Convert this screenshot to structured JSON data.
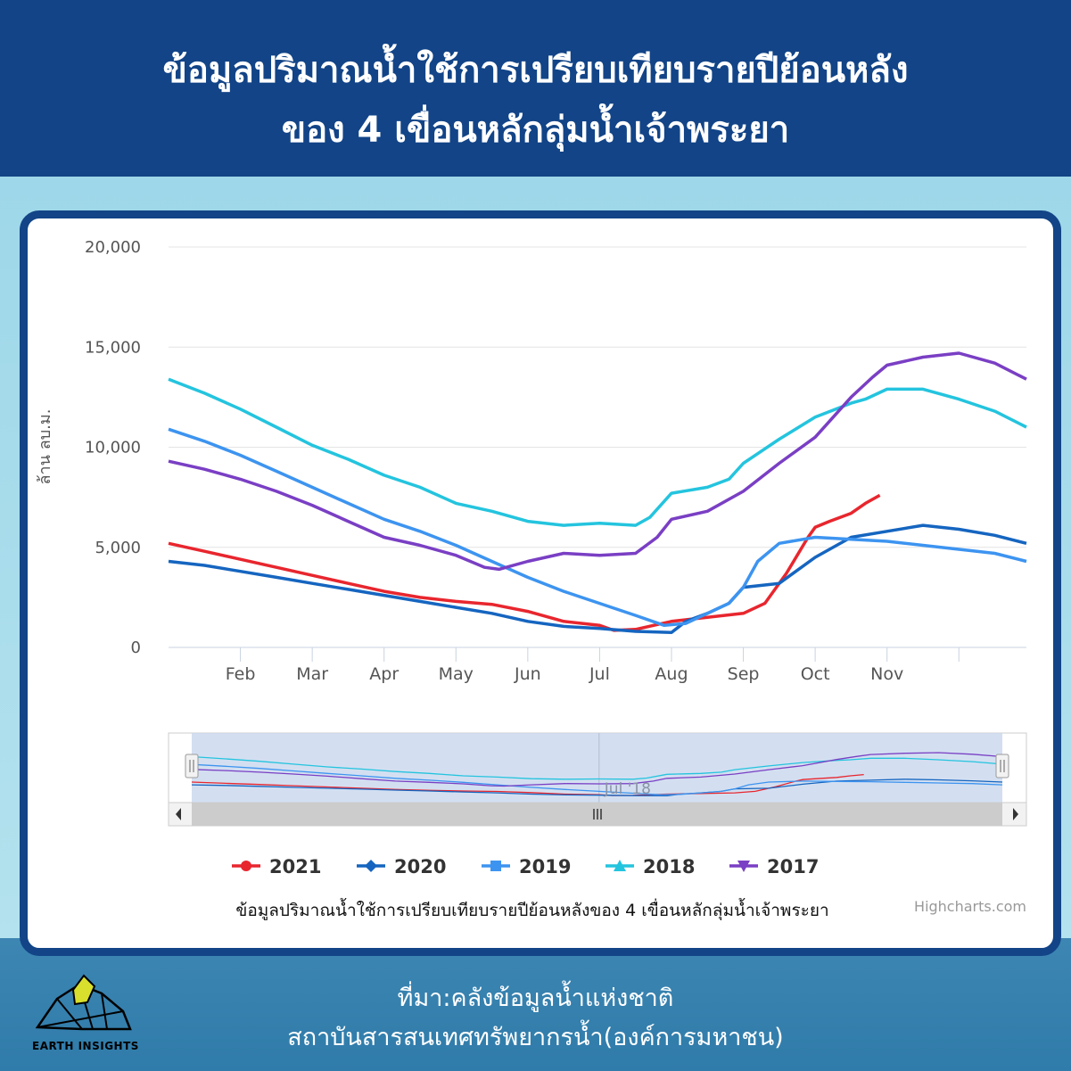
{
  "header": {
    "title_line1": "ข้อมูลปริมาณน้ำใช้การเปรียบเทียบรายปีย้อนหลัง",
    "title_line2": "ของ 4 เขื่อนหลักลุ่มน้ำเจ้าพระยา"
  },
  "footer": {
    "source_line1": "ที่มา:คลังข้อมูลน้ำแห่งชาติ",
    "source_line2": "สถาบันสารสนเทศทรัพยากรน้ำ(องค์การมหาชน)",
    "logo_text": "EARTH INSIGHTS"
  },
  "chart_data": {
    "type": "line",
    "title": "",
    "subtitle": "ข้อมูลปริมาณน้ำใช้การเปรียบเทียบรายปีย้อนหลังของ 4 เขื่อนหลักลุ่มน้ำเจ้าพระยา",
    "ylabel": "ล้าน ลบ.ม.",
    "xlabel": "",
    "ylim": [
      0,
      20000
    ],
    "y_ticks": [
      "0",
      "5,000",
      "10,000",
      "15,000",
      "20,000"
    ],
    "x_ticks": [
      "Feb",
      "Mar",
      "Apr",
      "May",
      "Jun",
      "Jul",
      "Aug",
      "Sep",
      "Oct",
      "Nov"
    ],
    "x_units": "month (1 = Jan 1, 13 = Jan 1 next year)",
    "xlim": [
      1.0,
      12.94
    ],
    "navigator_label": "Jul '18",
    "credits": "Highcharts.com",
    "legend_position": "bottom",
    "grid": true,
    "series": [
      {
        "name": "2021",
        "color": "#e8262e",
        "marker": "circle",
        "x": [
          1.0,
          1.5,
          2.0,
          2.5,
          3.0,
          3.5,
          4.0,
          4.5,
          5.0,
          5.5,
          6.0,
          6.5,
          7.0,
          7.2,
          7.5,
          8.0,
          8.5,
          9.0,
          9.3,
          9.6,
          9.9,
          10.0,
          10.2,
          10.5,
          10.7,
          10.9
        ],
        "y": [
          5200,
          4800,
          4400,
          4000,
          3600,
          3200,
          2800,
          2500,
          2300,
          2150,
          1800,
          1300,
          1100,
          850,
          900,
          1300,
          1500,
          1700,
          2200,
          3700,
          5500,
          6000,
          6300,
          6700,
          7200,
          7600
        ]
      },
      {
        "name": "2020",
        "color": "#1565c0",
        "marker": "diamond",
        "x": [
          1.0,
          1.5,
          2.0,
          2.5,
          3.0,
          3.5,
          4.0,
          4.5,
          5.0,
          5.5,
          6.0,
          6.5,
          7.0,
          7.5,
          8.0,
          8.2,
          8.5,
          8.8,
          9.0,
          9.5,
          10.0,
          10.5,
          11.0,
          11.5,
          12.0,
          12.5,
          12.94
        ],
        "y": [
          4300,
          4100,
          3800,
          3500,
          3200,
          2900,
          2600,
          2300,
          2000,
          1700,
          1300,
          1050,
          950,
          800,
          750,
          1300,
          1700,
          2200,
          3000,
          3200,
          4500,
          5500,
          5800,
          6100,
          5900,
          5600,
          5200
        ]
      },
      {
        "name": "2019",
        "color": "#3d94f0",
        "marker": "square",
        "x": [
          1.0,
          1.5,
          2.0,
          2.5,
          3.0,
          3.5,
          4.0,
          4.5,
          5.0,
          5.5,
          6.0,
          6.5,
          7.0,
          7.5,
          7.9,
          8.2,
          8.5,
          8.8,
          9.0,
          9.2,
          9.5,
          10.0,
          10.5,
          11.0,
          11.5,
          12.0,
          12.5,
          12.94
        ],
        "y": [
          10900,
          10300,
          9600,
          8800,
          8000,
          7200,
          6400,
          5800,
          5100,
          4300,
          3500,
          2800,
          2200,
          1600,
          1100,
          1200,
          1700,
          2200,
          3000,
          4300,
          5200,
          5500,
          5400,
          5300,
          5100,
          4900,
          4700,
          4300
        ]
      },
      {
        "name": "2018",
        "color": "#24c4de",
        "marker": "triangle",
        "x": [
          1.0,
          1.5,
          2.0,
          2.5,
          3.0,
          3.5,
          4.0,
          4.5,
          5.0,
          5.5,
          6.0,
          6.5,
          7.0,
          7.5,
          7.7,
          8.0,
          8.5,
          8.8,
          9.0,
          9.5,
          10.0,
          10.5,
          10.7,
          11.0,
          11.5,
          12.0,
          12.5,
          12.94
        ],
        "y": [
          13400,
          12700,
          11900,
          11000,
          10100,
          9400,
          8600,
          8000,
          7200,
          6800,
          6300,
          6100,
          6200,
          6100,
          6500,
          7700,
          8000,
          8400,
          9200,
          10400,
          11500,
          12200,
          12400,
          12900,
          12900,
          12400,
          11800,
          11000
        ]
      },
      {
        "name": "2017",
        "color": "#7a3fc4",
        "marker": "triangle-down",
        "x": [
          1.0,
          1.5,
          2.0,
          2.5,
          3.0,
          3.5,
          4.0,
          4.5,
          5.0,
          5.4,
          5.6,
          6.0,
          6.5,
          7.0,
          7.5,
          7.8,
          8.0,
          8.5,
          9.0,
          9.5,
          10.0,
          10.5,
          10.8,
          11.0,
          11.5,
          12.0,
          12.5,
          12.94
        ],
        "y": [
          9300,
          8900,
          8400,
          7800,
          7100,
          6300,
          5500,
          5100,
          4600,
          4000,
          3900,
          4300,
          4700,
          4600,
          4700,
          5500,
          6400,
          6800,
          7800,
          9200,
          10500,
          12500,
          13500,
          14100,
          14500,
          14700,
          14200,
          13400
        ]
      }
    ]
  }
}
